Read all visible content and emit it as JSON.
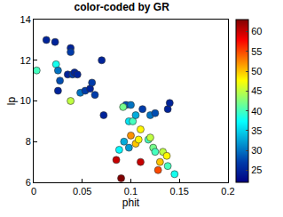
{
  "chart_data": {
    "type": "scatter",
    "title": "color-coded by GR",
    "x_label": "phit",
    "y_label": "lp",
    "x": [
      0.003,
      0.013,
      0.022,
      0.023,
      0.025,
      0.027,
      0.025,
      0.035,
      0.038,
      0.038,
      0.04,
      0.042,
      0.045,
      0.038,
      0.048,
      0.053,
      0.058,
      0.06,
      0.063,
      0.07,
      0.072,
      0.095,
      0.098,
      0.1,
      0.092,
      0.102,
      0.105,
      0.11,
      0.093,
      0.098,
      0.1,
      0.105,
      0.112,
      0.12,
      0.125,
      0.118,
      0.12,
      0.123,
      0.125,
      0.128,
      0.13,
      0.133,
      0.137,
      0.138,
      0.14,
      0.145,
      0.138,
      0.11,
      0.085,
      0.09,
      0.088,
      0.108
    ],
    "y": [
      11.5,
      13.0,
      12.9,
      11.8,
      11.5,
      11.0,
      10.5,
      11.3,
      12.6,
      12.4,
      11.3,
      11.4,
      11.3,
      10.0,
      10.4,
      10.5,
      10.6,
      10.9,
      10.3,
      12.0,
      9.3,
      9.8,
      9.0,
      9.8,
      9.7,
      9.0,
      9.3,
      8.6,
      8.0,
      7.7,
      8.3,
      7.9,
      9.6,
      9.3,
      9.4,
      8.1,
      8.2,
      7.7,
      7.5,
      6.6,
      7.0,
      7.5,
      7.3,
      9.6,
      9.9,
      6.4,
      6.8,
      7.0,
      7.1,
      6.2,
      7.6,
      8.1
    ],
    "gr": [
      40,
      25,
      25,
      38,
      30,
      28,
      25,
      25,
      25,
      27,
      27,
      25,
      25,
      45,
      30,
      27,
      25,
      27,
      27,
      25,
      25,
      28,
      36,
      30,
      42,
      40,
      33,
      48,
      33,
      32,
      52,
      50,
      27,
      30,
      28,
      40,
      45,
      42,
      40,
      55,
      50,
      45,
      48,
      25,
      25,
      38,
      40,
      60,
      60,
      63,
      37,
      48
    ],
    "xlim": [
      0,
      0.2
    ],
    "xticks": [
      0,
      0.05,
      0.1,
      0.15,
      0.2
    ],
    "ylim": [
      6,
      14
    ],
    "yticks": [
      6,
      8,
      10,
      12,
      14
    ],
    "colorbar_range": [
      22,
      63
    ],
    "colorbar_ticks": [
      25,
      30,
      35,
      40,
      45,
      50,
      55,
      60
    ],
    "marker": "circle",
    "grid": false
  }
}
